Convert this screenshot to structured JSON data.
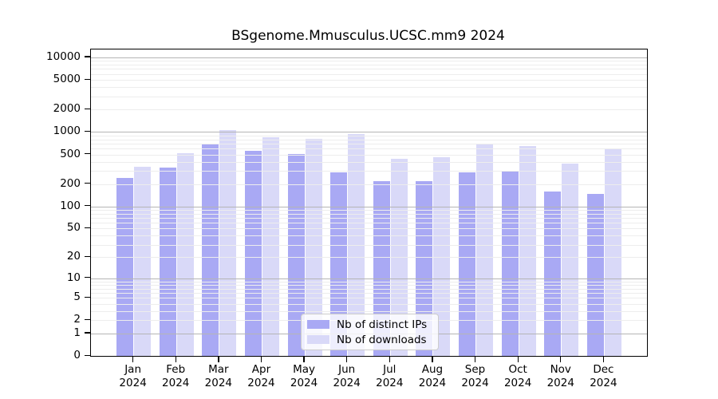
{
  "chart_data": {
    "type": "bar",
    "title": "BSgenome.Mmusculus.UCSC.mm9 2024",
    "categories": [
      "Jan 2024",
      "Feb 2024",
      "Mar 2024",
      "Apr 2024",
      "May 2024",
      "Jun 2024",
      "Jul 2024",
      "Aug 2024",
      "Sep 2024",
      "Oct 2024",
      "Nov 2024",
      "Dec 2024"
    ],
    "series": [
      {
        "name": "Nb of distinct IPs",
        "color": "#a9a9f4",
        "values": [
          240,
          335,
          695,
          560,
          510,
          290,
          218,
          218,
          290,
          300,
          160,
          148
        ]
      },
      {
        "name": "Nb of downloads",
        "color": "#d9d9f8",
        "values": [
          345,
          525,
          1050,
          855,
          820,
          935,
          440,
          460,
          700,
          650,
          380,
          600
        ]
      }
    ],
    "yscale": "log10(value+1)",
    "ylim": [
      0,
      12000
    ],
    "yticks": [
      0,
      1,
      2,
      5,
      10,
      20,
      50,
      100,
      200,
      500,
      1000,
      2000,
      5000,
      10000
    ],
    "grid": {
      "major_lines": [
        1,
        10,
        100,
        1000,
        10000
      ],
      "minor_multiples": [
        2,
        3,
        4,
        5,
        6,
        7,
        8,
        9
      ],
      "minor_decades": [
        1,
        10,
        100,
        1000
      ]
    },
    "legend": {
      "position": "lower-center",
      "labels": [
        "Nb of distinct IPs",
        "Nb of downloads"
      ]
    },
    "colors": {
      "distinct_ips": "#a9a9f4",
      "downloads": "#d9d9f8",
      "grid_major": "#b5b5b5",
      "grid_minor": "#ededed",
      "axis": "#000000",
      "legend_border": "#cccccc"
    }
  }
}
